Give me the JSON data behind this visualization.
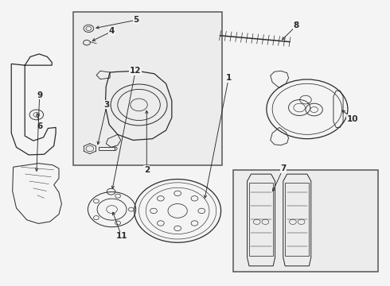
{
  "background_color": "#f4f4f4",
  "line_color": "#2a2a2a",
  "box_border": "#555555",
  "label_color": "#111111",
  "figsize": [
    4.9,
    3.6
  ],
  "dpi": 100
}
